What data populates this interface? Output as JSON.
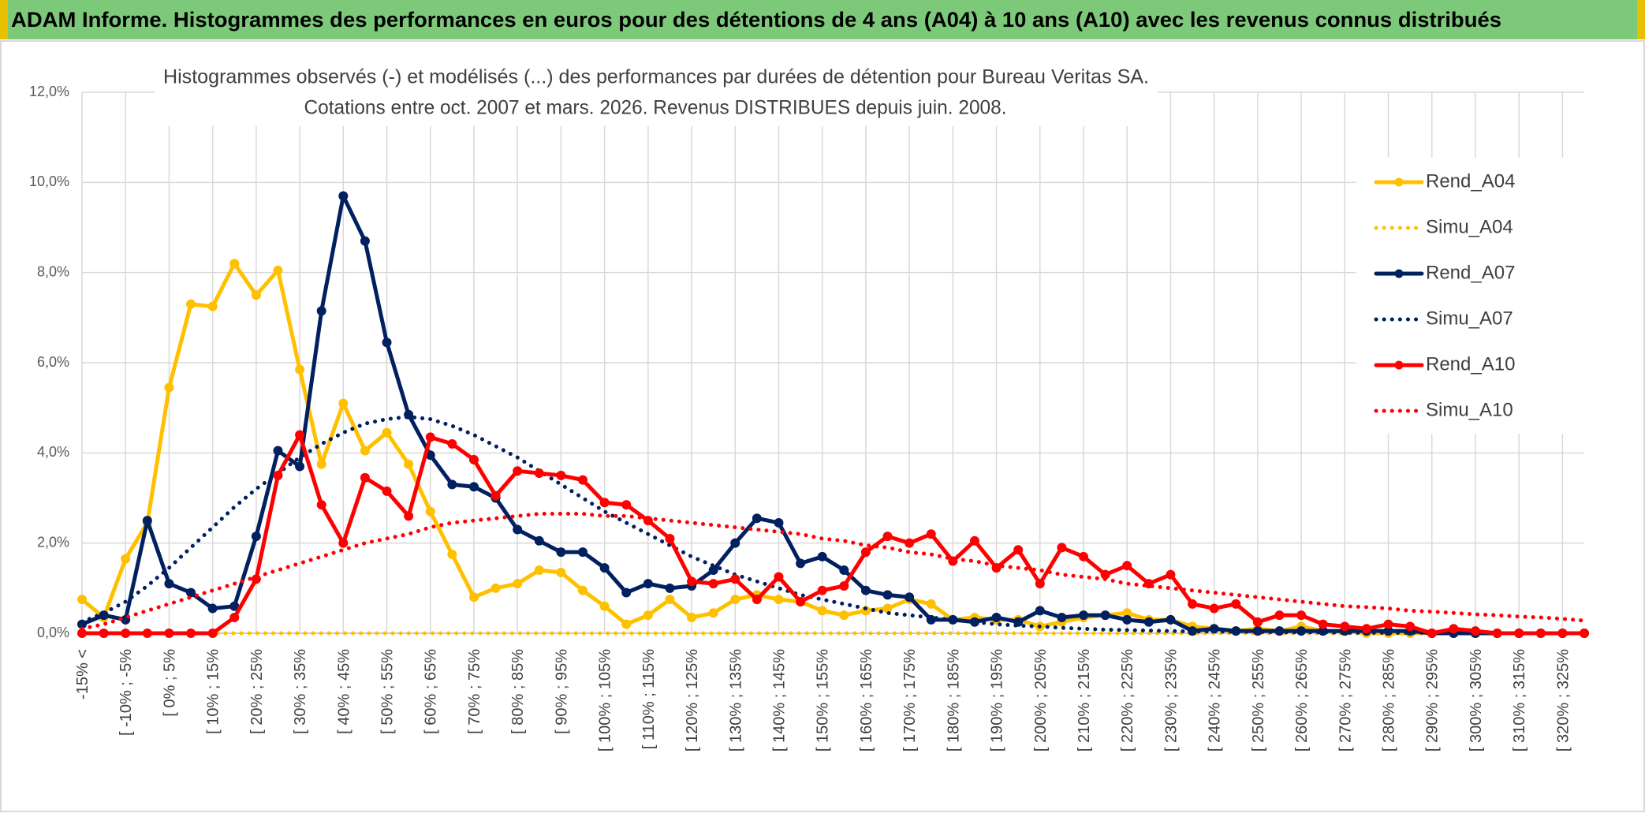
{
  "chart_data": {
    "type": "line",
    "title": "ADAM Informe. Histogrammes des performances en euros pour des détentions de 4 ans (A04) à 10 ans (A10) avec les revenus connus distribués",
    "subtitle": [
      "Histogrammes observés (-) et modélisés (...) des performances par durées de détention pour Bureau Veritas SA.",
      "Cotations entre oct. 2007 et mars. 2026. Revenus DISTRIBUES depuis juin. 2008."
    ],
    "categories": [
      "-15% <",
      null,
      "[ -10% ; -5%",
      null,
      "[ 0% ; 5%",
      null,
      "[ 10% ; 15%",
      null,
      "[ 20% ; 25%",
      null,
      "[ 30% ; 35%",
      null,
      "[ 40% ; 45%",
      null,
      "[ 50% ; 55%",
      null,
      "[ 60% ; 65%",
      null,
      "[ 70% ; 75%",
      null,
      "[ 80% ; 85%",
      null,
      "[ 90% ; 95%",
      null,
      "[ 100% ; 105%",
      null,
      "[ 110% ; 115%",
      null,
      "[ 120% ; 125%",
      null,
      "[ 130% ; 135%",
      null,
      "[ 140% ; 145%",
      null,
      "[ 150% ; 155%",
      null,
      "[ 160% ; 165%",
      null,
      "[ 170% ; 175%",
      null,
      "[ 180% ; 185%",
      null,
      "[ 190% ; 195%",
      null,
      "[ 200% ; 205%",
      null,
      "[ 210% ; 215%",
      null,
      "[ 220% ; 225%",
      null,
      "[ 230% ; 235%",
      null,
      "[ 240% ; 245%",
      null,
      "[ 250% ; 255%",
      null,
      "[ 260% ; 265%",
      null,
      "[ 270% ; 275%",
      null,
      "[ 280% ; 285%",
      null,
      "[ 290% ; 295%",
      null,
      "[ 300% ; 305%",
      null,
      "[ 310% ; 315%",
      null,
      "[ 320% ; 325%",
      null
    ],
    "series": [
      {
        "name": "Rend_A04",
        "color": "#ffc000",
        "line_style": "solid",
        "marker": true,
        "values": [
          0.75,
          0.35,
          1.65,
          2.45,
          5.45,
          7.3,
          7.25,
          8.2,
          7.5,
          8.05,
          5.85,
          3.75,
          5.1,
          4.05,
          4.45,
          3.75,
          2.7,
          1.75,
          0.8,
          1.0,
          1.1,
          1.4,
          1.35,
          0.95,
          0.6,
          0.2,
          0.4,
          0.75,
          0.35,
          0.45,
          0.75,
          0.85,
          0.75,
          0.7,
          0.5,
          0.4,
          0.5,
          0.55,
          0.75,
          0.65,
          0.3,
          0.35,
          0.3,
          0.3,
          0.15,
          0.25,
          0.35,
          0.4,
          0.45,
          0.3,
          0.3,
          0.15,
          0.1,
          0.05,
          0.1,
          0.05,
          0.15,
          0.05,
          0.05,
          0,
          0,
          0,
          0,
          0,
          0,
          0,
          0,
          0,
          0,
          0
        ]
      },
      {
        "name": "Simu_A04",
        "color": "#ffc000",
        "line_style": "dotted",
        "marker": false,
        "values": [
          0,
          0,
          0,
          0,
          0,
          0,
          0,
          0,
          0,
          0,
          0,
          0,
          0,
          0,
          0,
          0,
          0,
          0,
          0,
          0,
          0,
          0,
          0,
          0,
          0,
          0,
          0,
          0,
          0,
          0,
          0,
          0,
          0,
          0,
          0,
          0,
          0,
          0,
          0,
          0,
          0,
          0,
          0,
          0,
          0,
          0,
          0,
          0,
          0,
          0,
          0,
          0,
          0,
          0,
          0,
          0,
          0,
          0,
          0,
          0,
          0,
          0,
          0,
          0,
          0,
          0,
          0,
          0,
          0,
          0
        ]
      },
      {
        "name": "Rend_A07",
        "color": "#002060",
        "line_style": "solid",
        "marker": true,
        "values": [
          0.2,
          0.4,
          0.3,
          2.5,
          1.1,
          0.9,
          0.55,
          0.6,
          2.15,
          4.05,
          3.7,
          7.15,
          9.7,
          8.7,
          6.45,
          4.85,
          3.95,
          3.3,
          3.25,
          3.0,
          2.3,
          2.05,
          1.8,
          1.8,
          1.45,
          0.9,
          1.1,
          1.0,
          1.05,
          1.4,
          2.0,
          2.55,
          2.45,
          1.55,
          1.7,
          1.4,
          0.95,
          0.85,
          0.8,
          0.3,
          0.3,
          0.25,
          0.35,
          0.25,
          0.5,
          0.35,
          0.4,
          0.4,
          0.3,
          0.25,
          0.3,
          0.05,
          0.1,
          0.05,
          0.05,
          0.05,
          0.05,
          0.05,
          0.05,
          0.05,
          0.05,
          0.05,
          0,
          0,
          0,
          0,
          0,
          0,
          0,
          0
        ]
      },
      {
        "name": "Simu_A07",
        "color": "#002060",
        "line_style": "dotted",
        "marker": false,
        "values": [
          0.25,
          0.45,
          0.7,
          1.05,
          1.45,
          1.9,
          2.35,
          2.8,
          3.2,
          3.55,
          3.9,
          4.2,
          4.45,
          4.65,
          4.75,
          4.8,
          4.75,
          4.6,
          4.4,
          4.15,
          3.9,
          3.6,
          3.3,
          3.0,
          2.7,
          2.45,
          2.2,
          1.95,
          1.7,
          1.5,
          1.3,
          1.15,
          1.0,
          0.85,
          0.75,
          0.65,
          0.55,
          0.45,
          0.4,
          0.35,
          0.3,
          0.25,
          0.2,
          0.17,
          0.15,
          0.12,
          0.1,
          0.08,
          0.07,
          0.06,
          0.05,
          0.04,
          0.04,
          0.03,
          0.03,
          0.02,
          0.02,
          0.02,
          0.01,
          0.01,
          0.01,
          0.01,
          0.01,
          0.01,
          0,
          0,
          0,
          0,
          0,
          0
        ]
      },
      {
        "name": "Rend_A10",
        "color": "#ff0000",
        "line_style": "solid",
        "marker": true,
        "values": [
          0,
          0,
          0,
          0,
          0,
          0,
          0,
          0.35,
          1.2,
          3.5,
          4.4,
          2.85,
          2.0,
          3.45,
          3.15,
          2.6,
          4.35,
          4.2,
          3.85,
          3.05,
          3.6,
          3.55,
          3.5,
          3.4,
          2.9,
          2.85,
          2.5,
          2.1,
          1.15,
          1.1,
          1.2,
          0.75,
          1.25,
          0.7,
          0.95,
          1.05,
          1.8,
          2.15,
          2.0,
          2.2,
          1.6,
          2.05,
          1.45,
          1.85,
          1.1,
          1.9,
          1.7,
          1.3,
          1.5,
          1.1,
          1.3,
          0.65,
          0.55,
          0.65,
          0.25,
          0.4,
          0.4,
          0.2,
          0.15,
          0.1,
          0.2,
          0.15,
          0,
          0.1,
          0.05,
          0,
          0,
          0,
          0,
          0
        ]
      },
      {
        "name": "Simu_A10",
        "color": "#ff0000",
        "line_style": "dotted",
        "marker": false,
        "values": [
          0.1,
          0.2,
          0.35,
          0.5,
          0.65,
          0.8,
          0.95,
          1.1,
          1.25,
          1.4,
          1.55,
          1.7,
          1.85,
          2.0,
          2.1,
          2.2,
          2.35,
          2.45,
          2.5,
          2.55,
          2.6,
          2.65,
          2.65,
          2.65,
          2.6,
          2.6,
          2.55,
          2.5,
          2.45,
          2.4,
          2.35,
          2.3,
          2.25,
          2.2,
          2.1,
          2.05,
          1.95,
          1.9,
          1.8,
          1.75,
          1.65,
          1.6,
          1.5,
          1.45,
          1.4,
          1.3,
          1.25,
          1.2,
          1.1,
          1.05,
          1.0,
          0.95,
          0.9,
          0.85,
          0.8,
          0.75,
          0.7,
          0.65,
          0.6,
          0.58,
          0.55,
          0.5,
          0.48,
          0.45,
          0.42,
          0.4,
          0.37,
          0.35,
          0.32,
          0.28
        ]
      }
    ],
    "ylim": [
      0,
      12
    ],
    "yticks": [
      {
        "value": 0,
        "label": "0,0%"
      },
      {
        "value": 2,
        "label": "2,0%"
      },
      {
        "value": 4,
        "label": "4,0%"
      },
      {
        "value": 6,
        "label": "6,0%"
      },
      {
        "value": 8,
        "label": "8,0%"
      },
      {
        "value": 10,
        "label": "10,0%"
      },
      {
        "value": 12,
        "label": "12,0%"
      }
    ],
    "grid": true,
    "legend": "right"
  }
}
